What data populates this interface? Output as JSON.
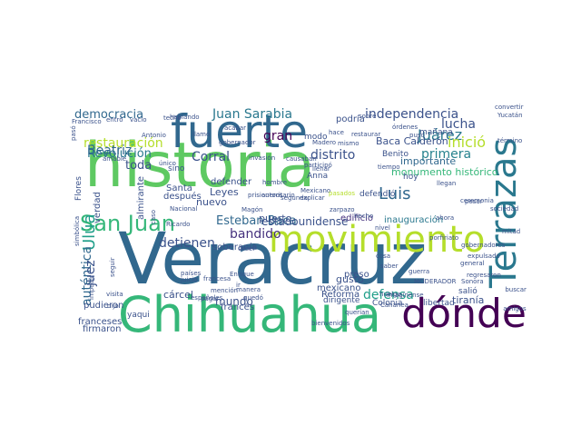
{
  "wordcloud": {
    "words": [
      {
        "text": "historia",
        "color": "#5ec962"
      },
      {
        "text": "Veracruz",
        "color": "#31688e"
      },
      {
        "text": "fuerte",
        "color": "#31688e"
      },
      {
        "text": "Chihuahua",
        "color": "#35b779"
      },
      {
        "text": "movimiento",
        "color": "#b5de2b"
      },
      {
        "text": "dónde",
        "color": "#440154"
      },
      {
        "text": "Terrazas",
        "color": "#2a788e"
      },
      {
        "text": "San Juan",
        "color": "#35b779"
      },
      {
        "text": "democracia",
        "color": "#31688e"
      },
      {
        "text": "independencia",
        "color": "#3b528b"
      },
      {
        "text": "Revolución",
        "color": "#2a788e"
      },
      {
        "text": "Juan Sarabia",
        "color": "#2a788e"
      },
      {
        "text": "Ulúa",
        "color": "#1f9e89"
      },
      {
        "text": "restauración",
        "color": "#b5de2b"
      },
      {
        "text": "Luis",
        "color": "#31688e"
      },
      {
        "text": "Juárez",
        "color": "#2a788e"
      },
      {
        "text": "lucha",
        "color": "#3b528b"
      },
      {
        "text": "Beatriz",
        "color": "#31688e"
      },
      {
        "text": "distrito",
        "color": "#3b528b"
      },
      {
        "text": "inició",
        "color": "#b5de2b"
      },
      {
        "text": "primera",
        "color": "#26828e"
      },
      {
        "text": "gran",
        "color": "#440154"
      },
      {
        "text": "Corral",
        "color": "#3b528b"
      },
      {
        "text": "toda",
        "color": "#3b528b"
      },
      {
        "text": "bandido",
        "color": "#46327e"
      },
      {
        "text": "detienen",
        "color": "#3b528b"
      },
      {
        "text": "Esteban Baca",
        "color": "#31688e"
      },
      {
        "text": "estadounidense",
        "color": "#3b528b"
      },
      {
        "text": "auténtica",
        "color": "#31688e"
      },
      {
        "text": "juez",
        "color": "#3b528b"
      },
      {
        "text": "mundo",
        "color": "#3b528b"
      },
      {
        "text": "defensa",
        "color": "#1f9e89"
      },
      {
        "text": "monumento histórico",
        "color": "#35b779"
      },
      {
        "text": "Baca Calderón",
        "color": "#3b528b"
      },
      {
        "text": "importante",
        "color": "#31688e"
      },
      {
        "text": "Leyes",
        "color": "#3b528b"
      },
      {
        "text": "después",
        "color": "#3b528b"
      },
      {
        "text": "Santa",
        "color": "#3b528b"
      },
      {
        "text": "nuevo",
        "color": "#3b528b"
      },
      {
        "text": "Reforma",
        "color": "#3b528b"
      },
      {
        "text": "mexicano",
        "color": "#3b528b"
      },
      {
        "text": "inauguración",
        "color": "#2a788e"
      },
      {
        "text": "edificio",
        "color": "#46327e"
      },
      {
        "text": "soberanía",
        "color": "#3b528b"
      },
      {
        "text": "defender",
        "color": "#3b528b"
      },
      {
        "text": "puerto",
        "color": "#3b528b"
      },
      {
        "text": "cárcel",
        "color": "#3b528b"
      },
      {
        "text": "francés",
        "color": "#3b528b"
      },
      {
        "text": "pudieron",
        "color": "#3b528b"
      },
      {
        "text": "franceses",
        "color": "#3b528b"
      },
      {
        "text": "firmaron",
        "color": "#3b528b"
      },
      {
        "text": "yaqui",
        "color": "#3b528b"
      },
      {
        "text": "libertad",
        "color": "#3b528b"
      },
      {
        "text": "tiranía",
        "color": "#3b528b"
      },
      {
        "text": "Colonia",
        "color": "#3b528b"
      },
      {
        "text": "salió",
        "color": "#3b528b"
      },
      {
        "text": "dirigente",
        "color": "#3b528b"
      },
      {
        "text": "gusto",
        "color": "#3b528b"
      },
      {
        "text": "preso",
        "color": "#3b528b"
      },
      {
        "text": "modo",
        "color": "#3b528b"
      },
      {
        "text": "Anna",
        "color": "#3b528b"
      },
      {
        "text": "sino",
        "color": "#3b528b"
      },
      {
        "text": "hoy",
        "color": "#3b528b"
      },
      {
        "text": "defendió",
        "color": "#3b528b"
      },
      {
        "text": "verdad",
        "color": "#3b528b"
      },
      {
        "text": "almirante",
        "color": "#3b528b"
      },
      {
        "text": "podría",
        "color": "#3b528b"
      },
      {
        "text": "mañana",
        "color": "#3b528b"
      },
      {
        "text": "Benito",
        "color": "#3b528b"
      },
      {
        "text": "Francisco",
        "color": "#3b528b"
      },
      {
        "text": "Madero",
        "color": "#3b528b"
      },
      {
        "text": "Creel",
        "color": "#3b528b"
      },
      {
        "text": "autoritario",
        "color": "#3b528b"
      },
      {
        "text": "Nacional",
        "color": "#3b528b"
      },
      {
        "text": "países",
        "color": "#3b528b"
      },
      {
        "text": "juicio",
        "color": "#3b528b"
      },
      {
        "text": "guerra",
        "color": "#3b528b"
      },
      {
        "text": "general",
        "color": "#3b528b"
      },
      {
        "text": "Sonora",
        "color": "#3b528b"
      },
      {
        "text": "huelga",
        "color": "#3b528b"
      },
      {
        "text": "Cananea",
        "color": "#3b528b"
      },
      {
        "text": "imagínense",
        "color": "#3b528b"
      },
      {
        "text": "saber",
        "color": "#3b528b"
      },
      {
        "text": "MODERADOR",
        "color": "#3b528b"
      },
      {
        "text": "regresaron",
        "color": "#3b528b"
      },
      {
        "text": "expulsado",
        "color": "#3b528b"
      },
      {
        "text": "gobernadores",
        "color": "#3b528b"
      },
      {
        "text": "porfiriato",
        "color": "#3b528b"
      },
      {
        "text": "llegan",
        "color": "#3b528b"
      },
      {
        "text": "buscar",
        "color": "#3b528b"
      },
      {
        "text": "Mexicano",
        "color": "#3b528b"
      },
      {
        "text": "explicar",
        "color": "#3b528b"
      },
      {
        "text": "órdenes",
        "color": "#3b528b"
      },
      {
        "text": "hombre",
        "color": "#3b528b"
      },
      {
        "text": "Enrique",
        "color": "#3b528b"
      },
      {
        "text": "Ricardo",
        "color": "#3b528b"
      },
      {
        "text": "amable",
        "color": "#3b528b"
      },
      {
        "text": "pesar",
        "color": "#3b528b"
      },
      {
        "text": "Yucatán",
        "color": "#3b528b"
      },
      {
        "text": "convertir",
        "color": "#3b528b"
      },
      {
        "text": "término",
        "color": "#3b528b"
      },
      {
        "text": "amigos",
        "color": "#3b528b"
      },
      {
        "text": "ceremonia",
        "color": "#3b528b"
      },
      {
        "text": "Magón",
        "color": "#3b528b"
      },
      {
        "text": "invasión",
        "color": "#3b528b"
      },
      {
        "text": "causaban",
        "color": "#3b528b"
      },
      {
        "text": "gobernador",
        "color": "#3b528b"
      },
      {
        "text": "llamó",
        "color": "#3b528b"
      },
      {
        "text": "acabar",
        "color": "#3b528b"
      },
      {
        "text": "entró",
        "color": "#3b528b"
      },
      {
        "text": "vacío",
        "color": "#3b528b"
      },
      {
        "text": "techo",
        "color": "#3b528b"
      },
      {
        "text": "visita",
        "color": "#3b528b"
      },
      {
        "text": "dijo",
        "color": "#3b528b"
      },
      {
        "text": "impedir",
        "color": "#3b528b"
      },
      {
        "text": "seguir",
        "color": "#3b528b"
      },
      {
        "text": "sociedad",
        "color": "#3b528b"
      },
      {
        "text": "nivel",
        "color": "#3b528b"
      },
      {
        "text": "Antonio",
        "color": "#3b528b"
      },
      {
        "text": "zarpazo",
        "color": "#3b528b"
      },
      {
        "text": "hecho",
        "color": "#3b528b"
      },
      {
        "text": "cosa",
        "color": "#3b528b"
      },
      {
        "text": "hace",
        "color": "#3b528b"
      },
      {
        "text": "ahora",
        "color": "#3b528b"
      },
      {
        "text": "sobre",
        "color": "#3b528b"
      },
      {
        "text": "tiempo",
        "color": "#3b528b"
      },
      {
        "text": "restaurar",
        "color": "#3b528b"
      },
      {
        "text": "mismo",
        "color": "#3b528b"
      },
      {
        "text": "querían",
        "color": "#3b528b"
      },
      {
        "text": "manera",
        "color": "#3b528b"
      },
      {
        "text": "quedó",
        "color": "#3b528b"
      },
      {
        "text": "bienvenidos",
        "color": "#3b528b"
      },
      {
        "text": "pagar",
        "color": "#3b528b"
      },
      {
        "text": "mención",
        "color": "#3b528b"
      },
      {
        "text": "prisioneros",
        "color": "#3b528b"
      },
      {
        "text": "segunda",
        "color": "#3b528b"
      },
      {
        "text": "hablando",
        "color": "#3b528b"
      },
      {
        "text": "francesa",
        "color": "#3b528b"
      },
      {
        "text": "españoles",
        "color": "#3b528b"
      },
      {
        "text": "ir",
        "color": "#3b528b"
      },
      {
        "text": "mitad",
        "color": "#3b528b"
      },
      {
        "text": "puso",
        "color": "#3b528b"
      },
      {
        "text": "llenar",
        "color": "#3b528b"
      },
      {
        "text": "participó",
        "color": "#3b528b"
      },
      {
        "text": "caso",
        "color": "#3b528b"
      },
      {
        "text": "único",
        "color": "#3b528b"
      },
      {
        "text": "Flores",
        "color": "#3b528b"
      },
      {
        "text": "simbólica",
        "color": "#3b528b"
      },
      {
        "text": "pasó",
        "color": "#3b528b"
      },
      {
        "text": "pasados",
        "color": "#b5de2b"
      },
      {
        "text": "transformaciones",
        "color": "#3b528b"
      },
      {
        "text": "Murieron",
        "color": "#3b528b"
      },
      {
        "text": "año",
        "color": "#3b528b"
      }
    ]
  }
}
